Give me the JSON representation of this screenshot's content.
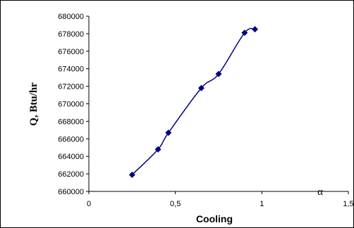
{
  "chart_data": {
    "type": "line",
    "xlabel": "Cooling",
    "ylabel": "Q, Btu/hr",
    "annotation": "α",
    "xlim": [
      0,
      1.5
    ],
    "ylim": [
      660000,
      680000
    ],
    "x_ticks": [
      0,
      0.5,
      1,
      1.5
    ],
    "x_tick_labels": [
      "0",
      "0,5",
      "1",
      "1,5"
    ],
    "y_ticks": [
      660000,
      662000,
      664000,
      666000,
      668000,
      670000,
      672000,
      674000,
      676000,
      678000,
      680000
    ],
    "y_tick_labels": [
      "660000",
      "662000",
      "664000",
      "666000",
      "668000",
      "670000",
      "672000",
      "674000",
      "676000",
      "678000",
      "680000"
    ],
    "grid": false,
    "legend": "none",
    "series": [
      {
        "color": "#000080",
        "marker": "diamond",
        "x": [
          0.25,
          0.4,
          0.46,
          0.65,
          0.75,
          0.9,
          0.96
        ],
        "y": [
          661900,
          664800,
          666700,
          671800,
          673400,
          678100,
          678500
        ]
      }
    ]
  }
}
